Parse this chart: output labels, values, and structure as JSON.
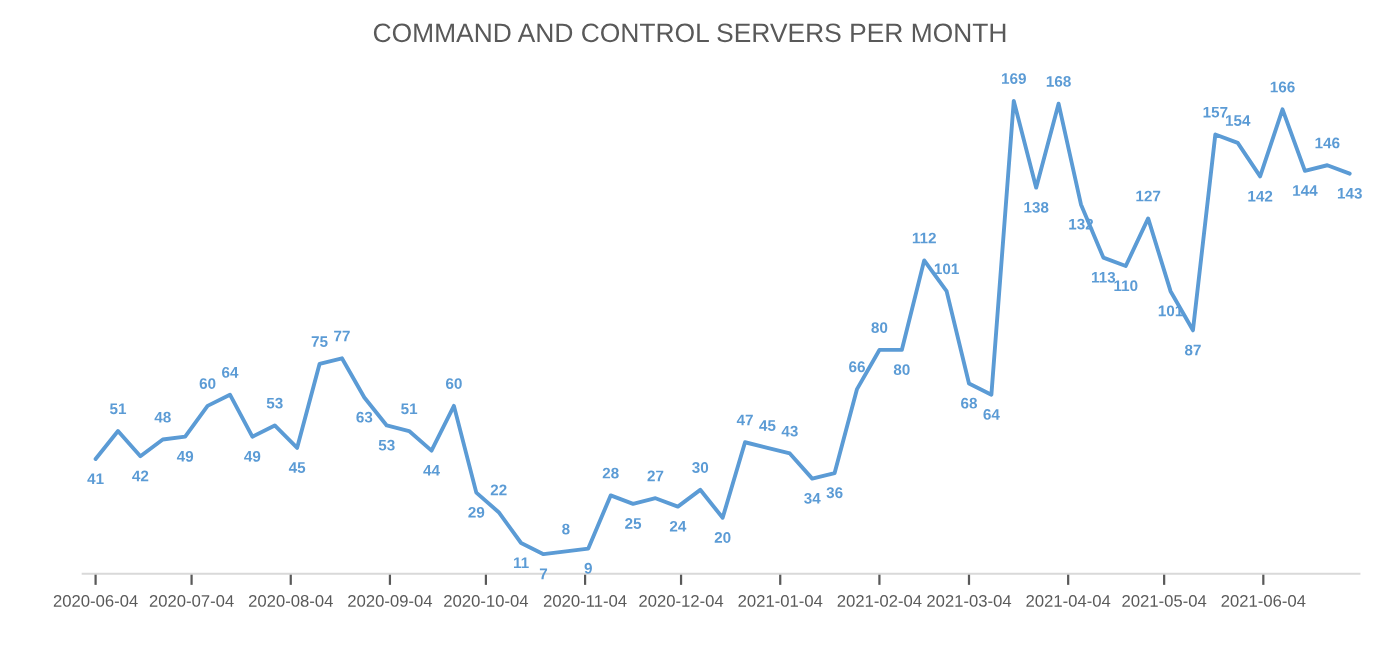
{
  "chart_data": {
    "type": "line",
    "title": "COMMAND AND CONTROL SERVERS PER MONTH",
    "x": [
      "2020-06-04",
      "2020-06-11",
      "2020-06-18",
      "2020-06-25",
      "2020-07-02",
      "2020-07-09",
      "2020-07-16",
      "2020-07-23",
      "2020-07-30",
      "2020-08-06",
      "2020-08-13",
      "2020-08-20",
      "2020-08-27",
      "2020-09-03",
      "2020-09-10",
      "2020-09-17",
      "2020-09-24",
      "2020-10-01",
      "2020-10-08",
      "2020-10-15",
      "2020-10-22",
      "2020-10-29",
      "2020-11-05",
      "2020-11-12",
      "2020-11-19",
      "2020-11-26",
      "2020-12-03",
      "2020-12-10",
      "2020-12-17",
      "2020-12-24",
      "2020-12-31",
      "2021-01-07",
      "2021-01-14",
      "2021-01-21",
      "2021-01-28",
      "2021-02-04",
      "2021-02-11",
      "2021-02-18",
      "2021-02-25",
      "2021-03-04",
      "2021-03-11",
      "2021-03-18",
      "2021-03-25",
      "2021-04-01",
      "2021-04-08",
      "2021-04-15",
      "2021-04-22",
      "2021-04-29",
      "2021-05-06",
      "2021-05-13",
      "2021-05-20",
      "2021-05-27",
      "2021-06-03",
      "2021-06-10",
      "2021-06-17",
      "2021-06-24",
      "2021-07-01"
    ],
    "series": [
      {
        "color": "#5b9bd5",
        "values": [
          41,
          51,
          42,
          48,
          49,
          60,
          64,
          49,
          53,
          45,
          75,
          77,
          63,
          53,
          51,
          44,
          60,
          29,
          22,
          11,
          7,
          8,
          9,
          28,
          25,
          27,
          24,
          30,
          20,
          47,
          45,
          43,
          34,
          36,
          66,
          80,
          80,
          112,
          101,
          68,
          64,
          169,
          138,
          168,
          132,
          113,
          110,
          127,
          101,
          87,
          157,
          154,
          142,
          166,
          144,
          146,
          143
        ]
      }
    ],
    "xlim": [
      "2020-05-31",
      "2021-07-04"
    ],
    "xticks": [
      {
        "value": "2020-06-04",
        "label": "2020-06-04"
      },
      {
        "value": "2020-07-04",
        "label": "2020-07-04"
      },
      {
        "value": "2020-08-04",
        "label": "2020-08-04"
      },
      {
        "value": "2020-09-04",
        "label": "2020-09-04"
      },
      {
        "value": "2020-10-04",
        "label": "2020-10-04"
      },
      {
        "value": "2020-11-04",
        "label": "2020-11-04"
      },
      {
        "value": "2020-12-04",
        "label": "2020-12-04"
      },
      {
        "value": "2021-01-04",
        "label": "2021-01-04"
      },
      {
        "value": "2021-02-04",
        "label": "2021-02-04"
      },
      {
        "value": "2021-03-04",
        "label": "2021-03-04"
      },
      {
        "value": "2021-04-04",
        "label": "2021-04-04"
      },
      {
        "value": "2021-05-04",
        "label": "2021-05-04"
      },
      {
        "value": "2021-06-04",
        "label": "2021-06-04"
      }
    ],
    "tick_labels": "x",
    "data_labels": true,
    "grid": false,
    "legend": false,
    "marker": "none",
    "line_style": "solid"
  }
}
